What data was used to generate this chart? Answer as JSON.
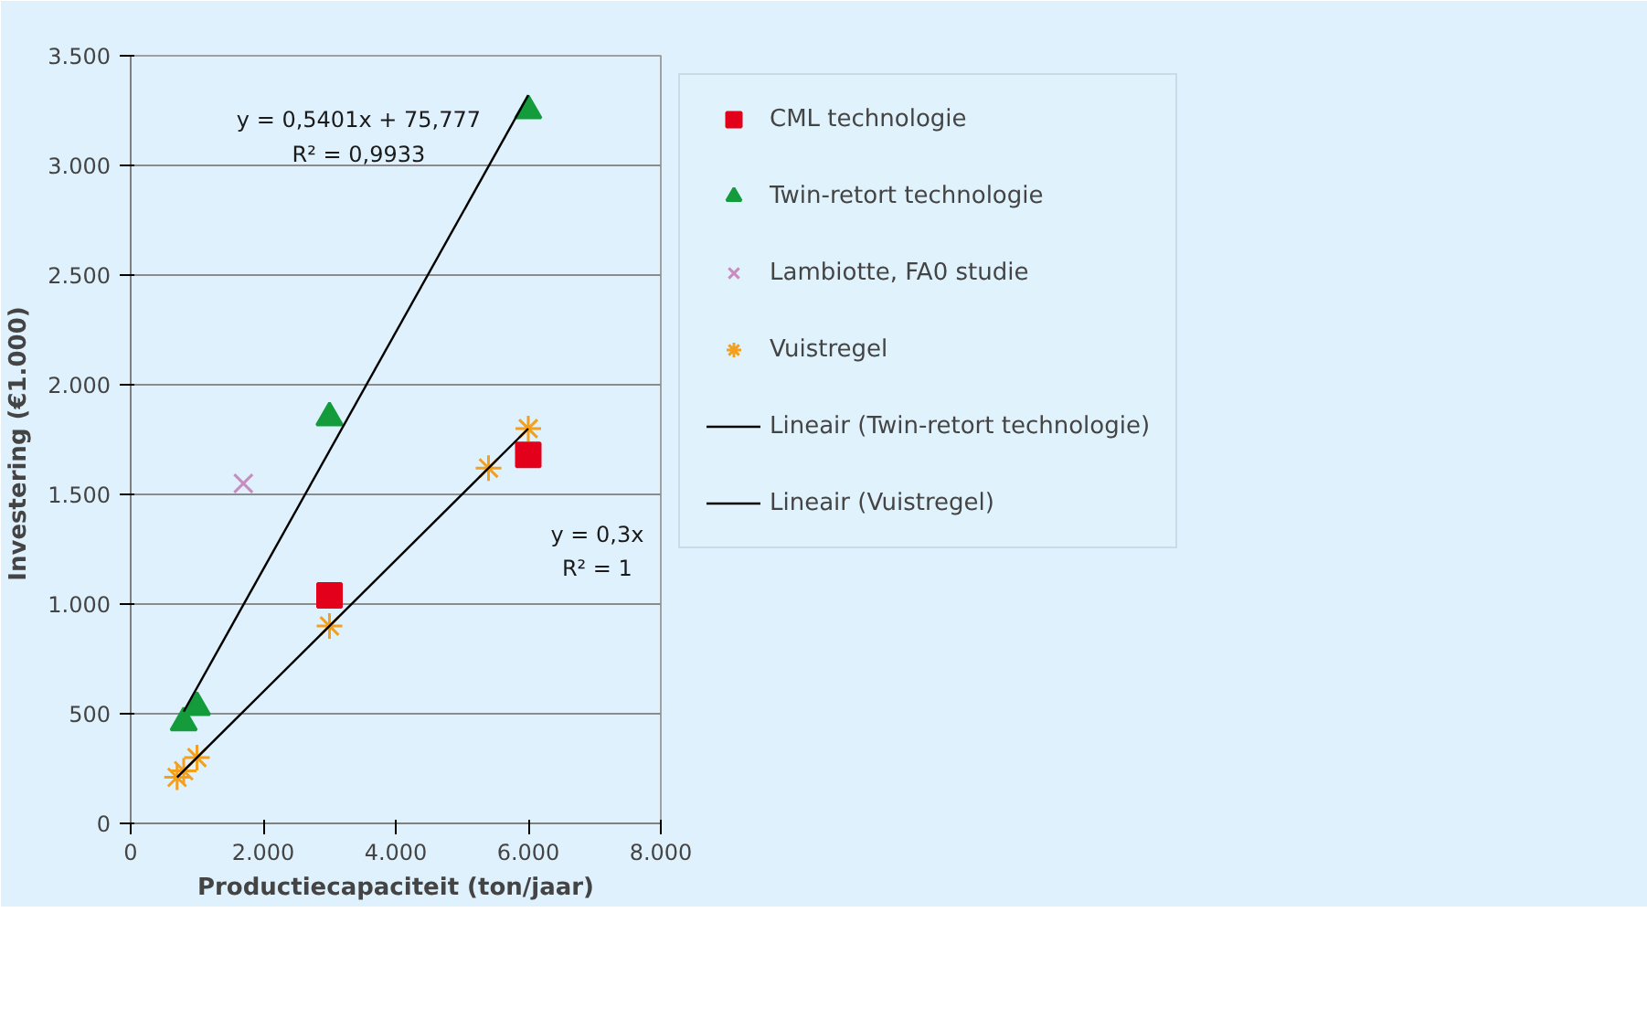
{
  "chart_data": {
    "type": "scatter",
    "xlabel": "Productiecapaciteit (ton/jaar)",
    "ylabel": "Investering  (€1.000)",
    "xlim": [
      0,
      8000
    ],
    "ylim": [
      0,
      3500
    ],
    "xticks": [
      0,
      {
        "value": 2000,
        "label": "2.000"
      },
      {
        "value": 4000,
        "label": "4.000"
      },
      {
        "value": 6000,
        "label": "6.000"
      },
      {
        "value": 8000,
        "label": "8.000"
      }
    ],
    "yticks": [
      0,
      500,
      {
        "value": 1000,
        "label": "1.000"
      },
      {
        "value": 1500,
        "label": "1.500"
      },
      {
        "value": 2000,
        "label": "2.000"
      },
      {
        "value": 2500,
        "label": "2.500"
      },
      {
        "value": 3000,
        "label": "3.000"
      },
      {
        "value": 3500,
        "label": "3.500"
      }
    ],
    "grid": "y",
    "legend": "right",
    "series": [
      {
        "name": "CML technologie",
        "color": "#e3001b",
        "marker": "square",
        "x": [
          3000,
          6000
        ],
        "values": [
          1040,
          1680
        ]
      },
      {
        "name": "Twin-retort technologie",
        "color": "#139b3c",
        "marker": "triangle",
        "x": [
          800,
          1000,
          3000,
          6000
        ],
        "values": [
          460,
          530,
          1850,
          3250
        ]
      },
      {
        "name": "Lambiotte, FA0 studie",
        "color": "#c88cc0",
        "marker": "cross",
        "x": [
          1700
        ],
        "values": [
          1550
        ]
      },
      {
        "name": "Vuistregel",
        "color": "#f2a01e",
        "x": [
          700,
          800,
          1000,
          3000,
          5400,
          6000
        ],
        "values": [
          210,
          240,
          300,
          900,
          1620,
          1800
        ]
      },
      {
        "name": "Lineair (Twin-retort technologie)",
        "type": "line",
        "color": "#000000",
        "marker": "none",
        "x": [
          800,
          6000
        ],
        "values": [
          510,
          3320
        ]
      },
      {
        "name": "Lineair (Vuistregel)",
        "type": "line",
        "color": "#000000",
        "marker": "none",
        "x": [
          700,
          6000
        ],
        "values": [
          210,
          1800
        ]
      }
    ],
    "annotations": [
      "y = 0,5401x + 75,777",
      "R² = 0,9933",
      "y = 0,3x",
      "R² = 1"
    ]
  }
}
